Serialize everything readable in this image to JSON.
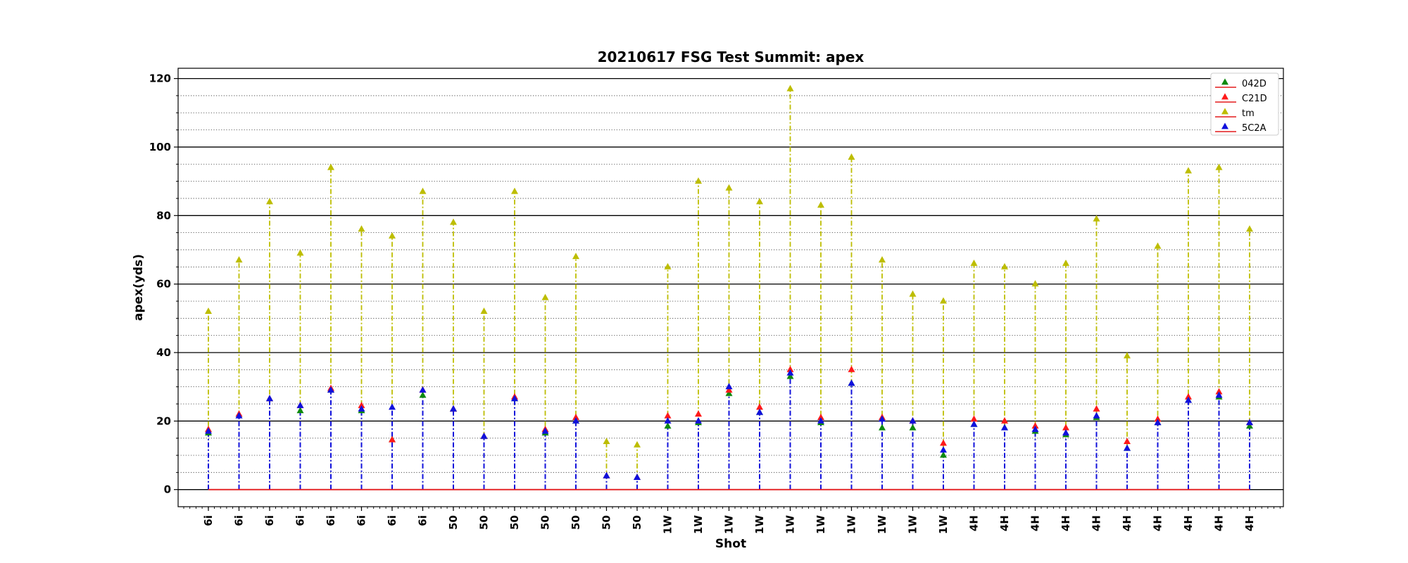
{
  "chart_data": {
    "type": "scatter",
    "title": "20210617 FSG Test Summit: apex",
    "xlabel": "Shot",
    "ylabel": "apex(yds)",
    "ylim": [
      -5,
      123
    ],
    "yticks": [
      0,
      20,
      40,
      60,
      80,
      100,
      120
    ],
    "grid": "major solid, minor dotted every 5",
    "legend_position": "top-right",
    "categories": [
      "6i",
      "6i",
      "6i",
      "6i",
      "6i",
      "6i",
      "6i",
      "6i",
      "50",
      "50",
      "50",
      "50",
      "50",
      "50",
      "50",
      "1W",
      "1W",
      "1W",
      "1W",
      "1W",
      "1W",
      "1W",
      "1W",
      "1W",
      "1W",
      "4H",
      "4H",
      "4H",
      "4H",
      "4H",
      "4H",
      "4H",
      "4H",
      "4H",
      "4H"
    ],
    "baseline": 0,
    "baseline_color": "#e31a1c",
    "series": [
      {
        "name": "042D",
        "color": "#0f8a0f",
        "values": [
          16.5,
          21.5,
          26.5,
          23,
          29,
          23,
          14.5,
          27.5,
          23.5,
          15.5,
          26.5,
          16.5,
          20,
          4,
          3.5,
          18.5,
          19.5,
          28,
          22.5,
          33,
          19.5,
          31,
          18,
          18,
          10,
          19,
          18,
          17,
          16,
          21,
          12,
          19.5,
          26,
          27,
          18.5
        ]
      },
      {
        "name": "C21D",
        "color": "#ff1a1a",
        "values": [
          17.5,
          22,
          26.5,
          24.5,
          29.5,
          24.5,
          14.5,
          29,
          23.5,
          15.5,
          27,
          17.5,
          21,
          4,
          3.5,
          21.5,
          22,
          29,
          24,
          35,
          21,
          35,
          21,
          20,
          13.5,
          20.5,
          20,
          18.5,
          18,
          23.5,
          14,
          20.5,
          27,
          28.5,
          19.5
        ]
      },
      {
        "name": "tm",
        "color": "#bdbd00",
        "values": [
          52,
          67,
          84,
          69,
          94,
          76,
          74,
          87,
          78,
          52,
          87,
          56,
          68,
          14,
          13,
          65,
          90,
          88,
          84,
          117,
          83,
          97,
          67,
          57,
          55,
          66,
          65,
          60,
          66,
          79,
          39,
          71,
          93,
          94,
          76
        ]
      },
      {
        "name": "5C2A",
        "color": "#1010dd",
        "values": [
          17,
          21.5,
          26.5,
          24.5,
          29,
          23.5,
          24,
          29,
          23.5,
          15.5,
          26.5,
          17,
          20,
          4,
          3.5,
          20,
          20,
          30,
          22.5,
          34,
          20,
          31,
          20.5,
          20,
          11.5,
          19,
          18,
          17.5,
          16.5,
          21.5,
          12,
          19.5,
          26,
          27.5,
          19.5
        ]
      }
    ]
  }
}
